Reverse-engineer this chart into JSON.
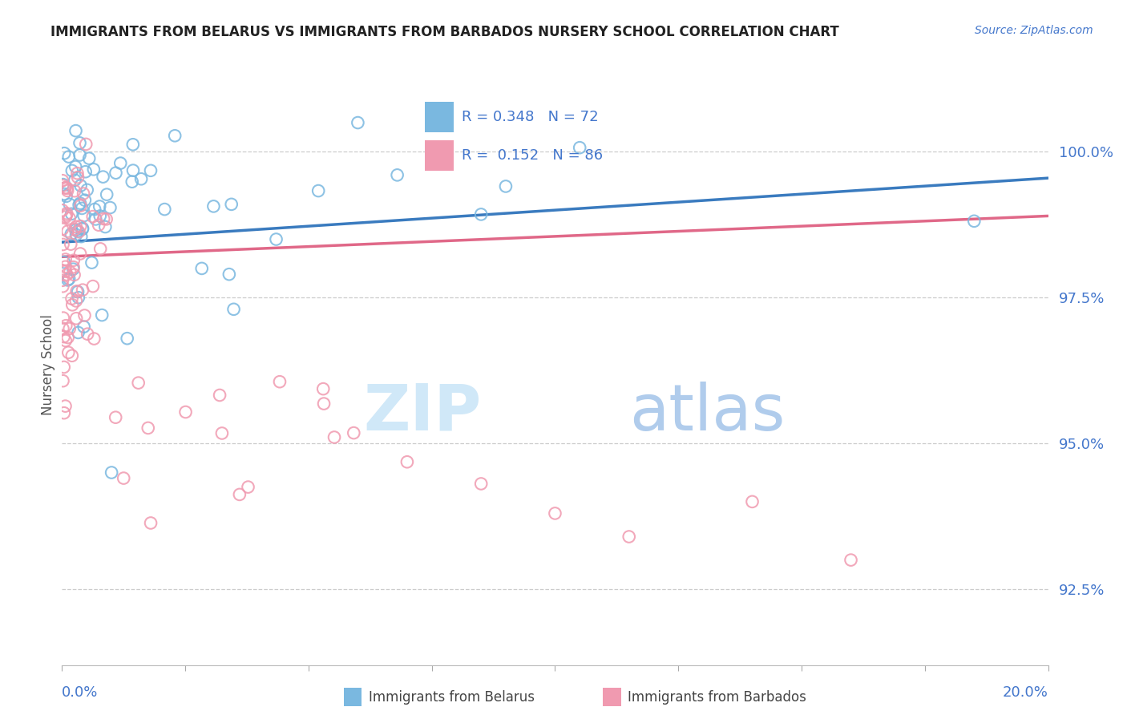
{
  "title": "IMMIGRANTS FROM BELARUS VS IMMIGRANTS FROM BARBADOS NURSERY SCHOOL CORRELATION CHART",
  "source": "Source: ZipAtlas.com",
  "ylabel": "Nursery School",
  "ytick_labels": [
    "92.5%",
    "95.0%",
    "97.5%",
    "100.0%"
  ],
  "ytick_values": [
    92.5,
    95.0,
    97.5,
    100.0
  ],
  "xmin": 0.0,
  "xmax": 20.0,
  "ymin": 91.2,
  "ymax": 101.5,
  "legend_belarus_R": "0.348",
  "legend_belarus_N": "72",
  "legend_barbados_R": "0.152",
  "legend_barbados_N": "86",
  "color_belarus": "#7ab8e0",
  "color_barbados": "#f09ab0",
  "color_line_belarus": "#3a7bbf",
  "color_line_barbados": "#e06888",
  "color_title": "#222222",
  "color_source": "#4477cc",
  "color_yticks": "#4477cc",
  "color_xticks": "#4477cc",
  "color_legend_text": "#4477cc",
  "color_ylabel": "#555555",
  "watermark_zip_color": "#d0e8f8",
  "watermark_atlas_color": "#b0ccec"
}
